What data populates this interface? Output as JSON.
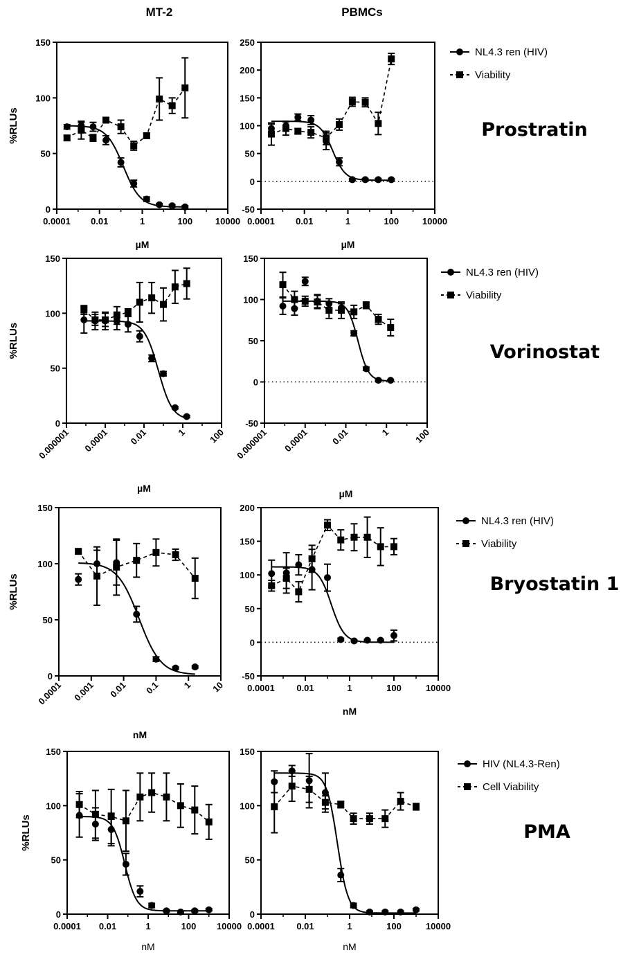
{
  "column_titles": [
    "MT-2",
    "PBMCs"
  ],
  "drugs": [
    "Prostratin",
    "Vorinostat",
    "Bryostatin 1",
    "PMA"
  ],
  "legends": [
    {
      "items": [
        "NL4.3 ren (HIV)",
        "Viability"
      ]
    },
    {
      "items": [
        "NL4.3 ren (HIV)",
        "Viability"
      ]
    },
    {
      "items": [
        "NL4.3 ren (HIV)",
        "Viability"
      ]
    },
    {
      "items": [
        "HIV (NL4.3-Ren)",
        "Cell Viability"
      ]
    }
  ],
  "chart_data": [
    {
      "id": "prostratin-mt2",
      "type": "scatter",
      "xscale": "log",
      "ylabel": "%RLUs",
      "xlabel": "µM",
      "xlabel_bold": true,
      "xticks": [
        "0.0001",
        "0.01",
        "1",
        "100",
        "10000"
      ],
      "xtick_values": [
        0.0001,
        0.01,
        1,
        100,
        10000
      ],
      "xtick_rotate": false,
      "yticks": [
        "0",
        "50",
        "100",
        "150"
      ],
      "ylim": [
        0,
        150
      ],
      "xlim": [
        0.0001,
        10000
      ],
      "zero_line": false,
      "series": [
        {
          "name": "NL4.3 ren (HIV)",
          "marker": "circle",
          "dash": false,
          "x": [
            0.0003,
            0.0014,
            0.005,
            0.02,
            0.1,
            0.4,
            1.6,
            6.3,
            25,
            100
          ],
          "y": [
            74,
            75,
            74,
            62,
            42,
            23,
            9,
            4,
            3,
            2
          ],
          "err": [
            2,
            3,
            4,
            4,
            4,
            3,
            2,
            1,
            1,
            1
          ]
        },
        {
          "name": "Viability",
          "marker": "square",
          "dash": true,
          "x": [
            0.0003,
            0.0014,
            0.005,
            0.02,
            0.1,
            0.4,
            1.6,
            6.3,
            25,
            100
          ],
          "y": [
            64,
            71,
            64,
            80,
            74,
            57,
            66,
            99,
            93,
            109
          ],
          "err": [
            2,
            8,
            3,
            2,
            6,
            4,
            2,
            19,
            7,
            27
          ]
        }
      ],
      "fit": {
        "top": 75,
        "bottom": 2,
        "ic50": 0.13,
        "hill": 1.1,
        "xmin": 0.0003,
        "xmax": 100
      }
    },
    {
      "id": "prostratin-pbmc",
      "type": "scatter",
      "xscale": "log",
      "ylabel": "",
      "xlabel": "µM",
      "xlabel_bold": true,
      "xticks": [
        "0.0001",
        "0.01",
        "1",
        "100",
        "10000"
      ],
      "xtick_values": [
        0.0001,
        0.01,
        1,
        100,
        10000
      ],
      "xtick_rotate": false,
      "yticks": [
        "-50",
        "0",
        "50",
        "100",
        "150",
        "200",
        "250"
      ],
      "ylim": [
        -50,
        250
      ],
      "xlim": [
        0.0001,
        10000
      ],
      "zero_line": true,
      "series": [
        {
          "name": "NL4.3 ren (HIV)",
          "marker": "circle",
          "dash": false,
          "x": [
            0.0003,
            0.0014,
            0.005,
            0.02,
            0.1,
            0.4,
            1.6,
            6.3,
            25,
            100
          ],
          "y": [
            95,
            100,
            115,
            110,
            72,
            35,
            3,
            3,
            3,
            3
          ],
          "err": [
            8,
            8,
            6,
            8,
            15,
            7,
            2,
            2,
            2,
            2
          ]
        },
        {
          "name": "Viability",
          "marker": "square",
          "dash": true,
          "x": [
            0.0003,
            0.0014,
            0.005,
            0.02,
            0.1,
            0.4,
            1.6,
            6.3,
            25,
            100
          ],
          "y": [
            85,
            95,
            90,
            88,
            78,
            102,
            143,
            142,
            104,
            220
          ],
          "err": [
            20,
            12,
            5,
            10,
            12,
            10,
            8,
            8,
            20,
            10
          ]
        }
      ],
      "fit": {
        "top": 108,
        "bottom": 2,
        "ic50": 0.2,
        "hill": 1.5,
        "xmin": 0.0003,
        "xmax": 100
      }
    },
    {
      "id": "vorinostat-mt2",
      "type": "scatter",
      "xscale": "log",
      "ylabel": "%RLUs",
      "xlabel": "µM",
      "xlabel_bold": true,
      "xticks": [
        "0.000001",
        "0.0001",
        "0.01",
        "1",
        "100"
      ],
      "xtick_values": [
        1e-06,
        0.0001,
        0.01,
        1,
        100
      ],
      "xtick_rotate": true,
      "yticks": [
        "0",
        "50",
        "100",
        "150"
      ],
      "ylim": [
        0,
        150
      ],
      "xlim": [
        1e-06,
        100
      ],
      "zero_line": false,
      "series": [
        {
          "name": "NL4.3 ren (HIV)",
          "marker": "circle",
          "dash": false,
          "x": [
            8e-06,
            3e-05,
            0.0001,
            0.0004,
            0.0015,
            0.006,
            0.025,
            0.1,
            0.4,
            1.6
          ],
          "y": [
            94,
            93,
            93,
            93,
            90,
            79,
            59,
            45,
            14,
            6
          ],
          "err": [
            12,
            8,
            8,
            8,
            7,
            5,
            3,
            2,
            1,
            1
          ]
        },
        {
          "name": "Viability",
          "marker": "square",
          "dash": true,
          "x": [
            8e-06,
            3e-05,
            0.0001,
            0.0004,
            0.0015,
            0.006,
            0.025,
            0.1,
            0.4,
            1.6
          ],
          "y": [
            103,
            94,
            94,
            98,
            101,
            110,
            114,
            108,
            124,
            127
          ],
          "err": [
            4,
            5,
            6,
            8,
            3,
            18,
            14,
            15,
            15,
            14
          ]
        }
      ],
      "fit": {
        "top": 93,
        "bottom": 3,
        "ic50": 0.055,
        "hill": 1.2,
        "xmin": 8e-06,
        "xmax": 1.6
      }
    },
    {
      "id": "vorinostat-pbmc",
      "type": "scatter",
      "xscale": "log",
      "ylabel": "",
      "xlabel": "µM",
      "xlabel_bold": true,
      "xticks": [
        "0.000001",
        "0.0001",
        "0.01",
        "1",
        "100"
      ],
      "xtick_values": [
        1e-06,
        0.0001,
        0.01,
        1,
        100
      ],
      "xtick_rotate": true,
      "yticks": [
        "-50",
        "0",
        "50",
        "100",
        "150"
      ],
      "ylim": [
        -50,
        150
      ],
      "xlim": [
        1e-06,
        100
      ],
      "zero_line": true,
      "series": [
        {
          "name": "NL4.3 ren (HIV)",
          "marker": "circle",
          "dash": false,
          "x": [
            8e-06,
            3e-05,
            0.0001,
            0.0004,
            0.0015,
            0.006,
            0.025,
            0.1,
            0.4,
            1.6
          ],
          "y": [
            92,
            89,
            122,
            98,
            95,
            90,
            59,
            16,
            2,
            2
          ],
          "err": [
            10,
            8,
            5,
            8,
            6,
            5,
            3,
            2,
            1,
            1
          ]
        },
        {
          "name": "Viability",
          "marker": "square",
          "dash": true,
          "x": [
            8e-06,
            3e-05,
            0.0001,
            0.0004,
            0.0015,
            0.006,
            0.025,
            0.1,
            0.4,
            1.6
          ],
          "y": [
            118,
            100,
            98,
            97,
            87,
            87,
            85,
            93,
            76,
            66
          ],
          "err": [
            15,
            10,
            6,
            8,
            10,
            10,
            8,
            4,
            6,
            10
          ]
        }
      ],
      "fit": {
        "top": 98,
        "bottom": 1,
        "ic50": 0.04,
        "hill": 1.7,
        "xmin": 8e-06,
        "xmax": 1.6
      }
    },
    {
      "id": "bryostatin-mt2",
      "type": "scatter",
      "xscale": "log",
      "ylabel": "%RLUs",
      "xlabel": "nM",
      "xlabel_bold": true,
      "xticks": [
        "0.0001",
        "0.001",
        "0.01",
        "0.1",
        "1",
        "10"
      ],
      "xtick_values": [
        0.0001,
        0.001,
        0.01,
        0.1,
        1,
        10
      ],
      "xtick_rotate": true,
      "yticks": [
        "0",
        "50",
        "100",
        "150"
      ],
      "ylim": [
        0,
        150
      ],
      "xlim": [
        0.0001,
        10
      ],
      "zero_line": false,
      "series": [
        {
          "name": "NL4.3 ren (HIV)",
          "marker": "circle",
          "dash": false,
          "x": [
            0.0004,
            0.0015,
            0.006,
            0.025,
            0.1,
            0.4,
            1.6
          ],
          "y": [
            86,
            100,
            101,
            55,
            15,
            7,
            8
          ],
          "err": [
            5,
            12,
            20,
            7,
            2,
            1,
            1
          ]
        },
        {
          "name": "Viability",
          "marker": "square",
          "dash": true,
          "x": [
            0.0004,
            0.0015,
            0.006,
            0.025,
            0.1,
            0.4,
            1.6
          ],
          "y": [
            111,
            89,
            97,
            103,
            110,
            108,
            87
          ],
          "err": [
            2,
            26,
            25,
            15,
            12,
            5,
            18
          ]
        }
      ],
      "fit": {
        "top": 101,
        "bottom": 1,
        "ic50": 0.03,
        "hill": 1.3,
        "xmin": 0.0004,
        "xmax": 1.6
      }
    },
    {
      "id": "bryostatin-pbmc",
      "type": "scatter",
      "xscale": "log",
      "ylabel": "",
      "xlabel": "nM",
      "xlabel_bold": true,
      "xticks": [
        "0.0001",
        "0.01",
        "1",
        "100",
        "10000"
      ],
      "xtick_values": [
        0.0001,
        0.01,
        1,
        100,
        10000
      ],
      "xtick_rotate": false,
      "yticks": [
        "-50",
        "0",
        "50",
        "100",
        "150",
        "200"
      ],
      "ylim": [
        -50,
        200
      ],
      "xlim": [
        0.0001,
        10000
      ],
      "zero_line": true,
      "series": [
        {
          "name": "NL4.3 ren (HIV)",
          "marker": "circle",
          "dash": false,
          "x": [
            0.0003,
            0.0014,
            0.005,
            0.02,
            0.1,
            0.4,
            1.6,
            6.3,
            25,
            100
          ],
          "y": [
            102,
            103,
            115,
            108,
            96,
            4,
            2,
            3,
            3,
            10
          ],
          "err": [
            20,
            30,
            15,
            30,
            20,
            2,
            1,
            1,
            1,
            8
          ]
        },
        {
          "name": "Viability",
          "marker": "square",
          "dash": true,
          "x": [
            0.0003,
            0.0014,
            0.005,
            0.02,
            0.1,
            0.4,
            1.6,
            6.3,
            25,
            100
          ],
          "y": [
            84,
            95,
            75,
            124,
            174,
            152,
            156,
            156,
            142,
            142
          ],
          "err": [
            8,
            15,
            15,
            20,
            8,
            15,
            20,
            30,
            28,
            12
          ]
        }
      ],
      "fit": {
        "top": 112,
        "bottom": 0,
        "ic50": 0.15,
        "hill": 1.5,
        "xmin": 0.0003,
        "xmax": 100
      }
    },
    {
      "id": "pma-mt2",
      "type": "scatter",
      "xscale": "log",
      "ylabel": "%RLUs",
      "xlabel": "nM",
      "xlabel_bold": false,
      "xticks": [
        "0.0001",
        "0.01",
        "1",
        "100",
        "10000"
      ],
      "xtick_values": [
        0.0001,
        0.01,
        1,
        100,
        10000
      ],
      "xtick_rotate": false,
      "yticks": [
        "0",
        "50",
        "100",
        "150"
      ],
      "ylim": [
        0,
        150
      ],
      "xlim": [
        0.0001,
        10000
      ],
      "zero_line": false,
      "series": [
        {
          "name": "HIV (NL4.3-Ren)",
          "marker": "circle",
          "dash": false,
          "x": [
            0.0004,
            0.0025,
            0.015,
            0.08,
            0.4,
            1.5,
            8,
            40,
            200,
            1000
          ],
          "y": [
            91,
            83,
            78,
            46,
            21,
            8,
            3,
            2,
            3,
            4
          ],
          "err": [
            20,
            15,
            15,
            10,
            5,
            2,
            1,
            1,
            1,
            1
          ]
        },
        {
          "name": "Cell Viability",
          "marker": "square",
          "dash": true,
          "x": [
            0.0004,
            0.0025,
            0.015,
            0.08,
            0.4,
            1.5,
            8,
            40,
            200,
            1000
          ],
          "y": [
            101,
            92,
            90,
            86,
            108,
            112,
            108,
            100,
            96,
            85
          ],
          "err": [
            12,
            22,
            25,
            28,
            22,
            18,
            22,
            20,
            22,
            16
          ]
        }
      ],
      "fit": {
        "top": 90,
        "bottom": 3,
        "ic50": 0.07,
        "hill": 1.5,
        "xmin": 0.0004,
        "xmax": 1000
      }
    },
    {
      "id": "pma-pbmc",
      "type": "scatter",
      "xscale": "log",
      "ylabel": "",
      "xlabel": "nM",
      "xlabel_bold": false,
      "xticks": [
        "0.0001",
        "0.01",
        "1",
        "100",
        "10000"
      ],
      "xtick_values": [
        0.0001,
        0.01,
        1,
        100,
        10000
      ],
      "xtick_rotate": false,
      "yticks": [
        "0",
        "50",
        "100",
        "150"
      ],
      "ylim": [
        0,
        150
      ],
      "xlim": [
        0.0001,
        10000
      ],
      "zero_line": false,
      "series": [
        {
          "name": "HIV (NL4.3-Ren)",
          "marker": "circle",
          "dash": false,
          "x": [
            0.0004,
            0.0025,
            0.015,
            0.08,
            0.4,
            1.5,
            8,
            40,
            200,
            1000
          ],
          "y": [
            122,
            132,
            123,
            112,
            36,
            8,
            2,
            2,
            2,
            4
          ],
          "err": [
            10,
            5,
            25,
            18,
            6,
            2,
            1,
            1,
            1,
            1
          ]
        },
        {
          "name": "Cell Viability",
          "marker": "square",
          "dash": true,
          "x": [
            0.0004,
            0.0025,
            0.015,
            0.08,
            0.4,
            1.5,
            8,
            40,
            200,
            1000
          ],
          "y": [
            99,
            118,
            115,
            103,
            101,
            88,
            88,
            88,
            104,
            99
          ],
          "err": [
            24,
            14,
            12,
            6,
            3,
            5,
            5,
            8,
            8,
            3
          ]
        }
      ],
      "fit": {
        "top": 130,
        "bottom": 1,
        "ic50": 0.28,
        "hill": 1.8,
        "xmin": 0.0004,
        "xmax": 1000
      }
    }
  ]
}
